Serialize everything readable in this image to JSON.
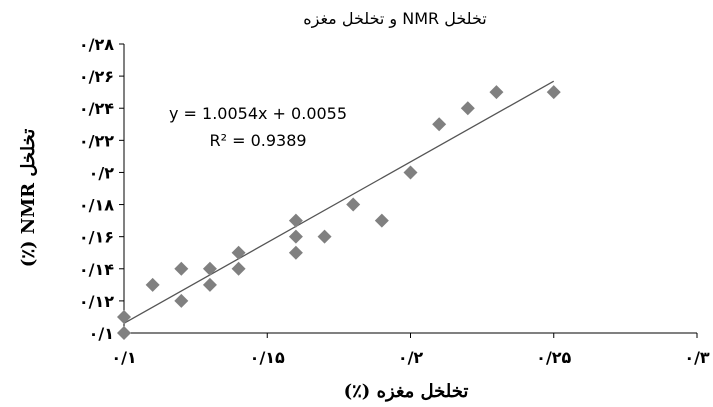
{
  "chart_data": {
    "type": "scatter",
    "title": "تخلخل NMR و تخلخل مغزه",
    "xlabel": "تخلخل مغزه (٪)",
    "ylabel": "تخلخل NMR (٪)",
    "xlim": [
      0.1,
      0.3
    ],
    "ylim": [
      0.1,
      0.28
    ],
    "x_ticks": [
      0.1,
      0.15,
      0.2,
      0.25,
      0.3
    ],
    "y_ticks": [
      0.1,
      0.12,
      0.14,
      0.16,
      0.18,
      0.2,
      0.22,
      0.24,
      0.26,
      0.28
    ],
    "x_tick_labels": [
      "۰/۱",
      "۰/۱۵",
      "۰/۲",
      "۰/۲۵",
      "۰/۳"
    ],
    "y_tick_labels": [
      "۰/۱",
      "۰/۱۲",
      "۰/۱۴",
      "۰/۱۶",
      "۰/۱۸",
      "۰/۲",
      "۰/۲۲",
      "۰/۲۴",
      "۰/۲۶",
      "۰/۲۸"
    ],
    "grid": false,
    "marker": "diamond",
    "marker_color": "#808080",
    "line_color": "#555555",
    "points": [
      {
        "x": 0.1,
        "y": 0.1
      },
      {
        "x": 0.1,
        "y": 0.11
      },
      {
        "x": 0.11,
        "y": 0.13
      },
      {
        "x": 0.12,
        "y": 0.12
      },
      {
        "x": 0.12,
        "y": 0.14
      },
      {
        "x": 0.13,
        "y": 0.13
      },
      {
        "x": 0.13,
        "y": 0.14
      },
      {
        "x": 0.14,
        "y": 0.14
      },
      {
        "x": 0.14,
        "y": 0.15
      },
      {
        "x": 0.16,
        "y": 0.15
      },
      {
        "x": 0.16,
        "y": 0.16
      },
      {
        "x": 0.16,
        "y": 0.17
      },
      {
        "x": 0.17,
        "y": 0.16
      },
      {
        "x": 0.18,
        "y": 0.18
      },
      {
        "x": 0.19,
        "y": 0.17
      },
      {
        "x": 0.2,
        "y": 0.2
      },
      {
        "x": 0.21,
        "y": 0.23
      },
      {
        "x": 0.22,
        "y": 0.24
      },
      {
        "x": 0.23,
        "y": 0.25
      },
      {
        "x": 0.25,
        "y": 0.25
      }
    ],
    "trendline": {
      "slope": 1.0054,
      "intercept": 0.0055,
      "x_range": [
        0.1,
        0.25
      ]
    },
    "equation_text": "y = 1.0054x + 0.0055",
    "r2_text": "R² = 0.9389"
  }
}
